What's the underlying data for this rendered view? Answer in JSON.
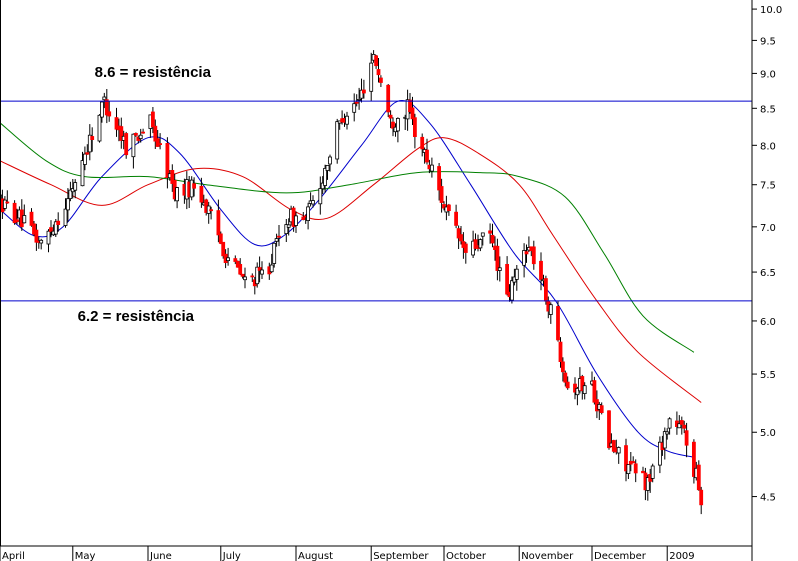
{
  "chart_data": {
    "type": "candlestick",
    "title": "",
    "xlabel": "",
    "ylabel": "",
    "y_scale": "log",
    "ylim": [
      4.15,
      10.15
    ],
    "y_ticks": [
      10.0,
      9.5,
      9.0,
      8.5,
      8.0,
      7.5,
      7.0,
      6.5,
      6.0,
      5.5,
      5.0,
      4.5
    ],
    "y_tick_labels": [
      "10.0",
      "9.5",
      "9.0",
      "8.5",
      "8.0",
      "7.5",
      "7.0",
      "6.5",
      "6.0",
      "5.5",
      "5.0",
      "4.5"
    ],
    "x_months": [
      {
        "label": "April",
        "start": "2008-04-01"
      },
      {
        "label": "May",
        "start": "2008-05-01"
      },
      {
        "label": "June",
        "start": "2008-06-01"
      },
      {
        "label": "July",
        "start": "2008-07-01"
      },
      {
        "label": "August",
        "start": "2008-08-01"
      },
      {
        "label": "September",
        "start": "2008-09-01"
      },
      {
        "label": "October",
        "start": "2008-10-01"
      },
      {
        "label": "November",
        "start": "2008-11-01"
      },
      {
        "label": "December",
        "start": "2008-12-01"
      },
      {
        "label": "2009",
        "start": "2009-01-01"
      }
    ],
    "xlim": [
      "2008-04-01",
      "2009-01-31"
    ],
    "grid": false,
    "up_color": "#ffffff",
    "down_color": "#ff0000",
    "wick_color": "#000000",
    "price_anchors": [
      [
        "2008-04-01",
        7.3
      ],
      [
        "2008-04-09",
        7.1
      ],
      [
        "2008-04-18",
        6.8
      ],
      [
        "2008-04-29",
        7.3
      ],
      [
        "2008-05-06",
        7.9
      ],
      [
        "2008-05-14",
        8.6
      ],
      [
        "2008-05-23",
        8.0
      ],
      [
        "2008-06-02",
        8.3
      ],
      [
        "2008-06-12",
        7.4
      ],
      [
        "2008-06-21",
        7.5
      ],
      [
        "2008-07-03",
        6.7
      ],
      [
        "2008-07-11",
        6.4
      ],
      [
        "2008-07-20",
        6.5
      ],
      [
        "2008-07-28",
        7.1
      ],
      [
        "2008-08-05",
        7.1
      ],
      [
        "2008-08-10",
        7.4
      ],
      [
        "2008-08-20",
        8.4
      ],
      [
        "2008-08-27",
        8.6
      ],
      [
        "2008-09-02",
        9.3
      ],
      [
        "2008-09-09",
        8.3
      ],
      [
        "2008-09-16",
        8.5
      ],
      [
        "2008-09-20",
        8.1
      ],
      [
        "2008-09-27",
        7.6
      ],
      [
        "2008-10-03",
        7.1
      ],
      [
        "2008-10-10",
        6.7
      ],
      [
        "2008-10-20",
        6.9
      ],
      [
        "2008-10-27",
        6.2
      ],
      [
        "2008-11-04",
        6.8
      ],
      [
        "2008-11-08",
        6.6
      ],
      [
        "2008-11-15",
        6.0
      ],
      [
        "2008-11-21",
        5.4
      ],
      [
        "2008-12-01",
        5.4
      ],
      [
        "2008-12-08",
        4.9
      ],
      [
        "2008-12-18",
        4.7
      ],
      [
        "2008-12-24",
        4.6
      ],
      [
        "2009-01-02",
        5.1
      ],
      [
        "2009-01-08",
        5.0
      ],
      [
        "2009-01-15",
        4.5
      ]
    ],
    "series": [
      {
        "name": "",
        "color": "#0000cc",
        "values": [
          [
            "2008-04-01",
            7.2
          ],
          [
            "2008-04-15",
            6.9
          ],
          [
            "2008-04-27",
            7.0
          ],
          [
            "2008-05-13",
            7.6
          ],
          [
            "2008-06-01",
            8.1
          ],
          [
            "2008-06-14",
            7.9
          ],
          [
            "2008-07-01",
            7.2
          ],
          [
            "2008-07-15",
            6.8
          ],
          [
            "2008-07-27",
            6.9
          ],
          [
            "2008-08-10",
            7.3
          ],
          [
            "2008-08-28",
            8.0
          ],
          [
            "2008-09-12",
            8.6
          ],
          [
            "2008-09-25",
            8.3
          ],
          [
            "2008-10-12",
            7.5
          ],
          [
            "2008-10-30",
            6.7
          ],
          [
            "2008-11-16",
            6.2
          ],
          [
            "2008-12-03",
            5.5
          ],
          [
            "2008-12-20",
            5.0
          ],
          [
            "2009-01-01",
            4.85
          ],
          [
            "2009-01-12",
            4.8
          ]
        ]
      },
      {
        "name": "",
        "color": "#dd0000",
        "values": [
          [
            "2008-04-01",
            7.8
          ],
          [
            "2008-04-22",
            7.5
          ],
          [
            "2008-05-13",
            7.25
          ],
          [
            "2008-06-01",
            7.5
          ],
          [
            "2008-06-21",
            7.7
          ],
          [
            "2008-07-10",
            7.6
          ],
          [
            "2008-07-30",
            7.2
          ],
          [
            "2008-08-14",
            7.1
          ],
          [
            "2008-09-02",
            7.5
          ],
          [
            "2008-09-20",
            7.95
          ],
          [
            "2008-10-01",
            8.1
          ],
          [
            "2008-10-15",
            7.9
          ],
          [
            "2008-11-01",
            7.5
          ],
          [
            "2008-11-15",
            6.9
          ],
          [
            "2008-12-03",
            6.2
          ],
          [
            "2008-12-20",
            5.7
          ],
          [
            "2009-01-15",
            5.25
          ]
        ]
      },
      {
        "name": "",
        "color": "#008000",
        "values": [
          [
            "2008-04-01",
            8.3
          ],
          [
            "2008-04-20",
            7.8
          ],
          [
            "2008-05-06",
            7.6
          ],
          [
            "2008-06-01",
            7.6
          ],
          [
            "2008-06-25",
            7.5
          ],
          [
            "2008-07-28",
            7.4
          ],
          [
            "2008-08-23",
            7.5
          ],
          [
            "2008-09-20",
            7.65
          ],
          [
            "2008-10-16",
            7.65
          ],
          [
            "2008-11-01",
            7.6
          ],
          [
            "2008-11-20",
            7.35
          ],
          [
            "2008-12-06",
            6.7
          ],
          [
            "2008-12-22",
            6.05
          ],
          [
            "2009-01-12",
            5.7
          ]
        ]
      }
    ],
    "hlines": [
      {
        "value": 8.6,
        "color": "#0000cc",
        "label": "8.6 = resistência",
        "label_anchor_date": "2008-05-10",
        "label_position": "above"
      },
      {
        "value": 6.2,
        "color": "#0000cc",
        "label": "6.2 = resistência",
        "label_anchor_date": "2008-05-03",
        "label_position": "below"
      }
    ]
  }
}
